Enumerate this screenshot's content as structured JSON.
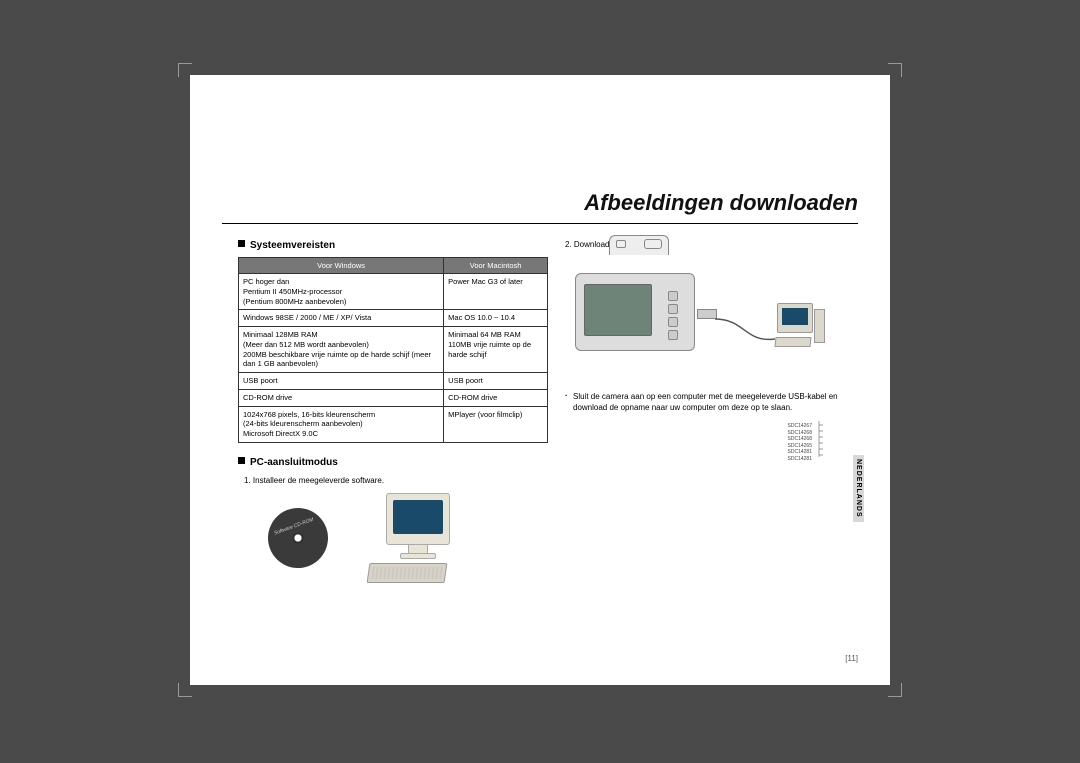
{
  "title": "Afbeeldingen downloaden",
  "sections": {
    "sysreq": {
      "heading": "Systeemvereisten",
      "headers": {
        "win": "Voor Windows",
        "mac": "Voor Macintosh"
      },
      "rows": [
        {
          "win": "PC hoger dan\nPentium II 450MHz-processor\n(Pentium 800MHz aanbevolen)",
          "mac": "Power Mac G3 of later"
        },
        {
          "win": "Windows 98SE / 2000 / ME / XP/ Vista",
          "mac": "Mac OS 10.0 ~ 10.4"
        },
        {
          "win": "Minimaal 128MB RAM\n(Meer dan 512 MB wordt aanbevolen)\n200MB beschikbare vrije ruimte op de harde schijf (meer dan 1 GB aanbevolen)",
          "mac": "Minimaal 64 MB RAM\n110MB vrije ruimte op de harde schijf"
        },
        {
          "win": "USB poort",
          "mac": "USB poort"
        },
        {
          "win": "CD-ROM drive",
          "mac": "CD-ROM drive"
        },
        {
          "win": "1024x768 pixels, 16-bits kleurenscherm\n(24-bits kleurenscherm aanbevolen)\nMicrosoft DirectX 9.0C",
          "mac": "MPlayer (voor filmclip)"
        }
      ]
    },
    "pcmode": {
      "heading": "PC-aansluitmodus",
      "step1": "1. Installeer de meegeleverde software.",
      "cd_label": "Software CD-ROM"
    },
    "download": {
      "step2": "2. Download de opnamen",
      "note": "Sluit de camera aan op een computer met de meegeleverde USB-kabel en download de opname naar uw computer om deze op te slaan."
    }
  },
  "filelist": [
    "SDC14267",
    "SDC14268",
    "SDC14268",
    "SDC14265",
    "SDC14281",
    "SDC14281"
  ],
  "lang_tab": "NEDERLANDS",
  "page_number": "[11]",
  "colors": {
    "page_bg": "#ffffff",
    "body_bg": "#4a4a4a",
    "table_header_bg": "#777777",
    "screen_color": "#1a4a6a"
  }
}
